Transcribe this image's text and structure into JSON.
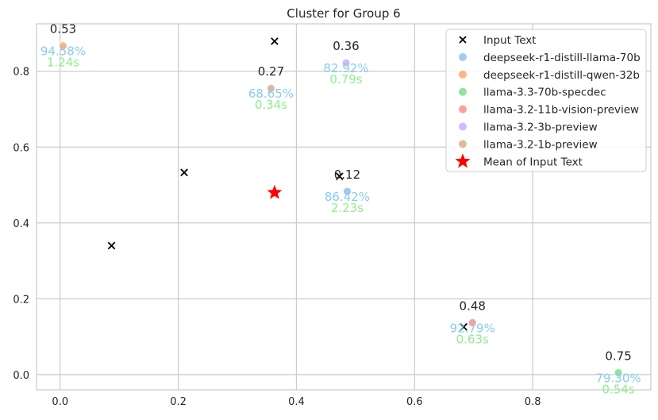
{
  "chart_data": {
    "type": "scatter",
    "title": "Cluster for Group 6",
    "xlabel": "",
    "ylabel": "",
    "xlim": [
      -0.04,
      1.0
    ],
    "ylim": [
      -0.04,
      0.925
    ],
    "xticks": [
      0.0,
      0.2,
      0.4,
      0.6,
      0.8
    ],
    "yticks": [
      0.0,
      0.2,
      0.4,
      0.6,
      0.8
    ],
    "xtick_labels": [
      "0.0",
      "0.2",
      "0.4",
      "0.6",
      "0.8"
    ],
    "ytick_labels": [
      "0.0",
      "0.2",
      "0.4",
      "0.6",
      "0.8"
    ],
    "grid": true,
    "legend_position": "top-right",
    "input_text": {
      "name": "Input Text",
      "color": "#000000",
      "points": [
        {
          "x": 0.087,
          "y": 0.34
        },
        {
          "x": 0.21,
          "y": 0.533
        },
        {
          "x": 0.363,
          "y": 0.879
        },
        {
          "x": 0.473,
          "y": 0.523
        },
        {
          "x": 0.683,
          "y": 0.126
        }
      ]
    },
    "models": [
      {
        "name": "deepseek-r1-distill-llama-70b",
        "color": "#a1c9f4",
        "x": 0.486,
        "y": 0.483,
        "score": "0.12",
        "accuracy": "86.42%",
        "time": "2.23s"
      },
      {
        "name": "deepseek-r1-distill-qwen-32b",
        "color": "#ffb482",
        "x": 0.005,
        "y": 0.867,
        "score": "0.53",
        "accuracy": "94.58%",
        "time": "1.24s"
      },
      {
        "name": "llama-3.3-70b-specdec",
        "color": "#8de5a1",
        "x": 0.945,
        "y": 0.005,
        "score": "0.75",
        "accuracy": "79.30%",
        "time": "0.54s"
      },
      {
        "name": "llama-3.2-11b-vision-preview",
        "color": "#ff9f9b",
        "x": 0.698,
        "y": 0.137,
        "score": "0.48",
        "accuracy": "92.79%",
        "time": "0.63s"
      },
      {
        "name": "llama-3.2-3b-preview",
        "color": "#d0bbff",
        "x": 0.484,
        "y": 0.822,
        "score": "0.36",
        "accuracy": "82.92%",
        "time": "0.79s"
      },
      {
        "name": "llama-3.2-1b-preview",
        "color": "#debb9b",
        "x": 0.357,
        "y": 0.755,
        "score": "0.27",
        "accuracy": "68.65%",
        "time": "0.34s"
      }
    ],
    "mean": {
      "name": "Mean of Input Text",
      "color": "#ff0000",
      "x": 0.363,
      "y": 0.48
    },
    "annotation_colors": {
      "score": "#262626",
      "accuracy": "#87ceeb",
      "time": "#90ee90"
    }
  }
}
